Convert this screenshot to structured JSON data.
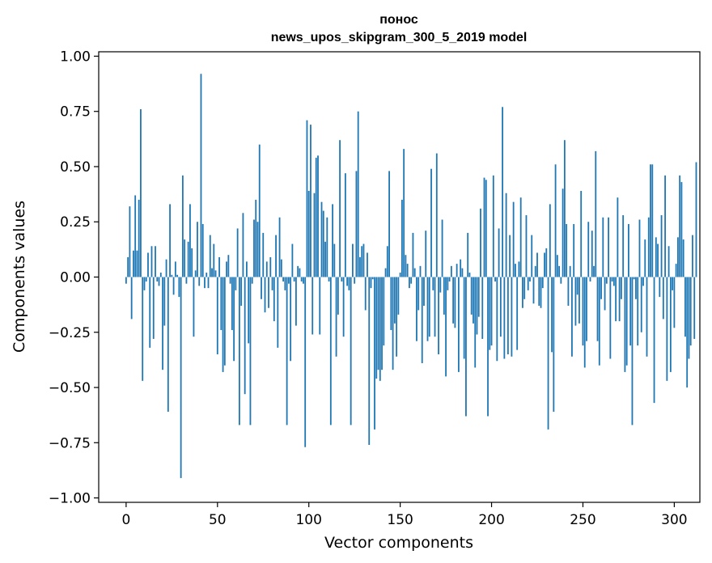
{
  "chart_data": {
    "type": "bar",
    "title_line1": "понос",
    "title_line2": "news_upos_skipgram_300_5_2019 model",
    "xlabel": "Vector components",
    "ylabel": "Components values",
    "xlim": [
      -15,
      314
    ],
    "ylim": [
      -1.02,
      1.02
    ],
    "xticks": [
      0,
      50,
      100,
      150,
      200,
      250,
      300
    ],
    "yticks": [
      -1.0,
      -0.75,
      -0.5,
      -0.25,
      0.0,
      0.25,
      0.5,
      0.75,
      1.0
    ],
    "ytick_labels": [
      "−1.00",
      "−0.75",
      "−0.50",
      "−0.25",
      "0.00",
      "0.25",
      "0.50",
      "0.75",
      "1.00"
    ],
    "bar_color": "#1f77b4",
    "values": [
      -0.03,
      0.09,
      0.32,
      -0.19,
      0.12,
      0.37,
      0.12,
      0.35,
      0.76,
      -0.47,
      -0.06,
      -0.02,
      0.11,
      -0.32,
      0.14,
      -0.28,
      0.14,
      -0.02,
      -0.04,
      0.02,
      -0.42,
      -0.22,
      0.08,
      -0.61,
      0.33,
      0.01,
      -0.08,
      0.07,
      0.01,
      -0.09,
      -0.91,
      0.46,
      0.17,
      -0.03,
      0.16,
      0.33,
      0.13,
      -0.27,
      0.03,
      0.25,
      -0.04,
      0.92,
      0.24,
      -0.05,
      0.02,
      -0.05,
      0.19,
      0.04,
      0.15,
      0.03,
      -0.35,
      0.09,
      -0.24,
      -0.43,
      -0.4,
      0.07,
      0.1,
      -0.03,
      -0.24,
      -0.38,
      -0.06,
      0.22,
      -0.67,
      -0.13,
      0.29,
      -0.53,
      0.07,
      -0.3,
      -0.67,
      -0.03,
      0.26,
      0.35,
      0.25,
      0.6,
      -0.1,
      0.2,
      -0.16,
      0.07,
      -0.14,
      0.09,
      -0.06,
      -0.2,
      0.19,
      -0.32,
      0.27,
      0.08,
      -0.02,
      -0.06,
      -0.67,
      -0.03,
      -0.38,
      0.15,
      -0.02,
      -0.22,
      0.05,
      0.04,
      -0.02,
      -0.03,
      -0.77,
      0.71,
      0.39,
      0.69,
      -0.26,
      0.38,
      0.54,
      0.55,
      -0.26,
      0.34,
      0.3,
      0.16,
      0.27,
      -0.02,
      -0.67,
      0.33,
      0.15,
      -0.36,
      -0.17,
      0.62,
      -0.02,
      -0.27,
      0.47,
      -0.04,
      -0.06,
      -0.67,
      0.15,
      -0.03,
      0.48,
      0.75,
      0.09,
      0.14,
      0.15,
      -0.15,
      0.11,
      -0.76,
      -0.05,
      -0.01,
      -0.69,
      -0.46,
      -0.42,
      -0.47,
      -0.42,
      -0.31,
      0.04,
      0.14,
      0.48,
      -0.24,
      -0.42,
      -0.21,
      -0.36,
      -0.17,
      0.02,
      0.35,
      0.58,
      0.1,
      0.06,
      -0.05,
      -0.03,
      0.2,
      0.04,
      -0.29,
      -0.15,
      0.05,
      -0.39,
      -0.13,
      0.21,
      -0.29,
      -0.27,
      0.49,
      -0.06,
      -0.27,
      0.56,
      -0.35,
      -0.07,
      0.26,
      -0.17,
      -0.45,
      -0.06,
      -0.02,
      0.05,
      -0.21,
      -0.23,
      0.06,
      -0.43,
      0.08,
      0.04,
      -0.37,
      -0.63,
      0.2,
      0.02,
      -0.17,
      -0.21,
      -0.41,
      -0.26,
      -0.18,
      0.31,
      -0.28,
      0.45,
      0.44,
      -0.63,
      -0.33,
      -0.31,
      0.46,
      -0.02,
      -0.38,
      0.22,
      -0.27,
      0.77,
      -0.37,
      0.38,
      -0.35,
      0.19,
      -0.36,
      0.34,
      0.06,
      -0.33,
      0.07,
      0.36,
      -0.14,
      -0.1,
      0.28,
      -0.06,
      -0.02,
      0.19,
      -0.12,
      0.05,
      0.11,
      -0.13,
      -0.14,
      -0.05,
      0.11,
      0.13,
      -0.69,
      0.33,
      -0.34,
      -0.61,
      0.51,
      0.1,
      0.05,
      -0.03,
      0.4,
      0.62,
      0.24,
      -0.13,
      0.05,
      -0.36,
      0.24,
      -0.22,
      -0.08,
      -0.21,
      0.39,
      -0.31,
      -0.41,
      -0.29,
      0.25,
      -0.02,
      0.21,
      0.05,
      0.57,
      -0.29,
      -0.4,
      -0.1,
      0.27,
      -0.15,
      -0.03,
      0.27,
      -0.37,
      -0.02,
      -0.04,
      -0.2,
      0.36,
      -0.2,
      -0.1,
      0.28,
      -0.43,
      -0.4,
      0.24,
      -0.31,
      -0.67,
      -0.01,
      -0.1,
      -0.31,
      0.26,
      -0.25,
      -0.04,
      0.17,
      -0.36,
      0.27,
      0.51,
      0.51,
      -0.57,
      0.18,
      0.15,
      -0.09,
      0.28,
      -0.19,
      0.46,
      -0.47,
      0.14,
      -0.43,
      -0.06,
      -0.23,
      0.06,
      0.18,
      0.46,
      0.43,
      0.17,
      -0.27,
      -0.5,
      -0.37,
      -0.31,
      0.19,
      -0.28,
      0.52
    ]
  }
}
